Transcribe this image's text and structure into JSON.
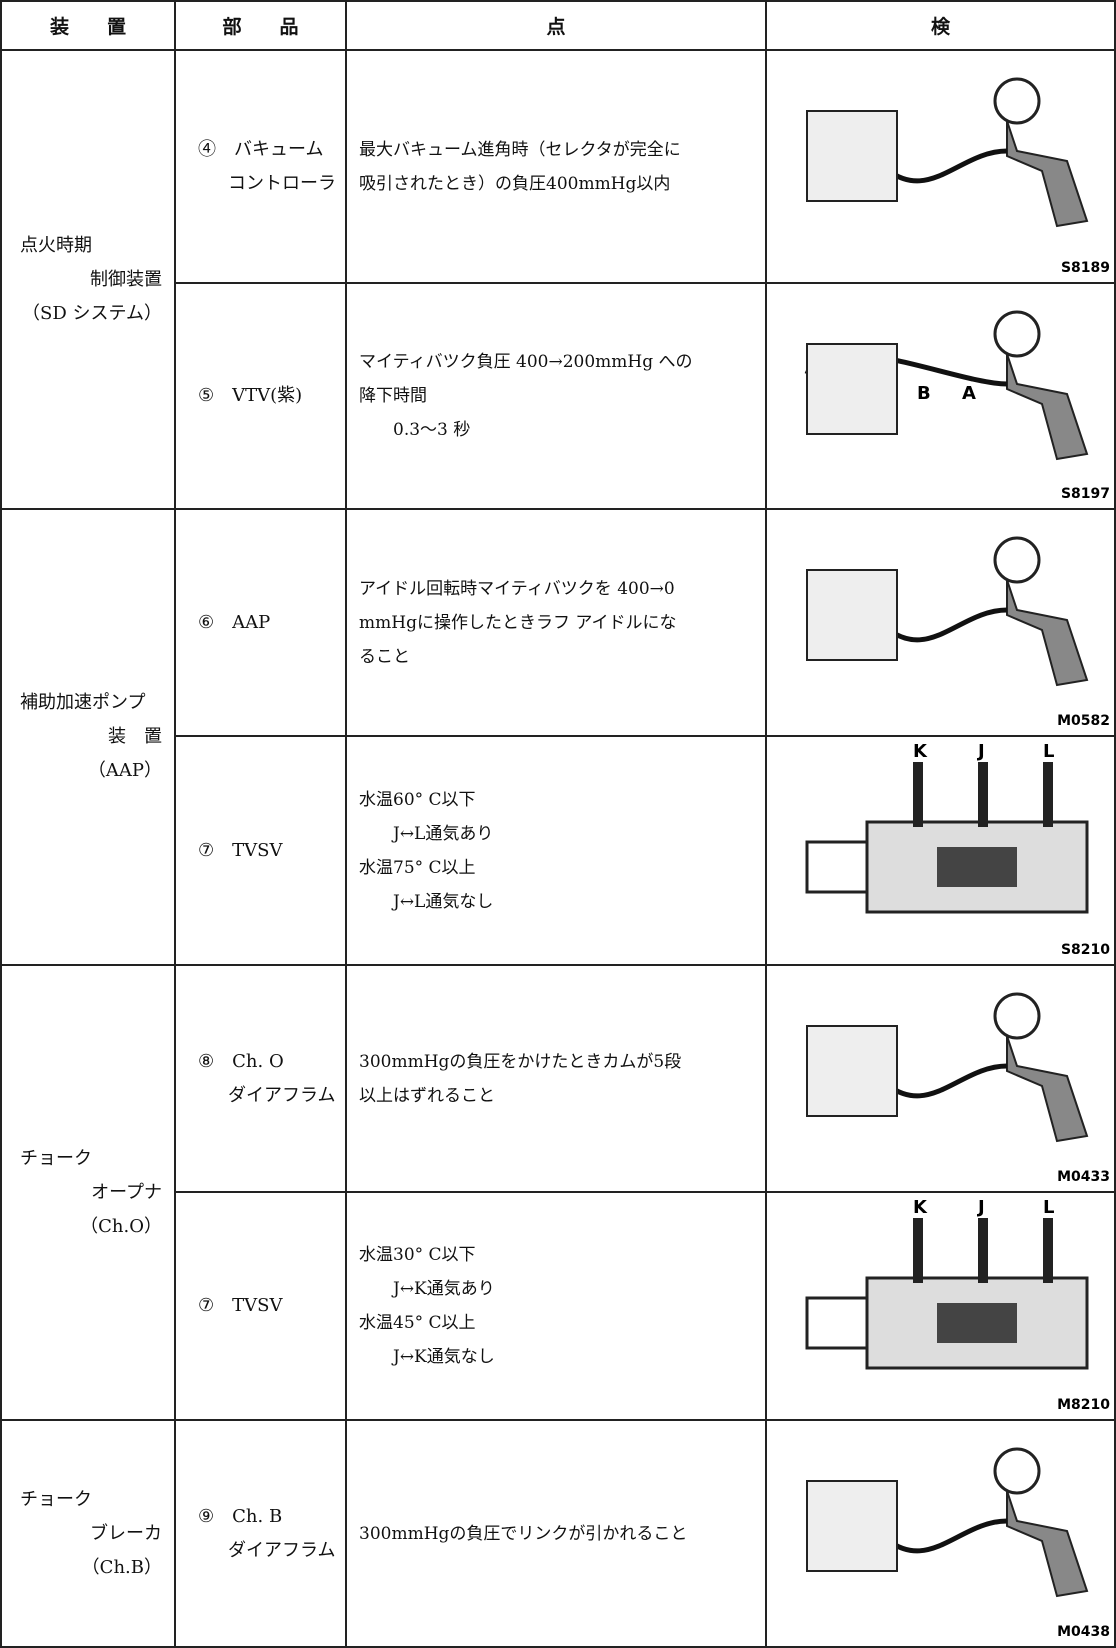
{
  "header": [
    "装　　置",
    "部　　品",
    "点",
    "検"
  ],
  "groups": [
    {
      "device": [
        "点火時期",
        "制御装置",
        "（SD システム）"
      ],
      "rows": [
        {
          "part": [
            "④　バキューム",
            "コントローラ"
          ],
          "check": [
            "最大バキューム進角時（セレクタが完全に",
            "吸引されたとき）の負圧400mmHg以内"
          ],
          "figure": {
            "code": "S8189",
            "labels": []
          }
        },
        {
          "part": [
            "⑤　VTV(紫)"
          ],
          "check": [
            "マイティバツク負圧 400→200mmHg への",
            "降下時間",
            "　　0.3～3 秒"
          ],
          "figure": {
            "code": "S8197",
            "labels": [
              "B",
              "A"
            ]
          }
        }
      ]
    },
    {
      "device": [
        "補助加速ポンプ",
        "装　置",
        "（AAP）"
      ],
      "rows": [
        {
          "part": [
            "⑥　AAP"
          ],
          "check": [
            "アイドル回転時マイティバツクを 400→0",
            "mmHgに操作したときラフ アイドルにな",
            "ること"
          ],
          "figure": {
            "code": "M0582",
            "labels": []
          }
        },
        {
          "part": [
            "⑦　TVSV"
          ],
          "check": [
            "水温60° C以下",
            "　　J↔L通気あり",
            "水温75° C以上",
            "　　J↔L通気なし"
          ],
          "figure": {
            "code": "S8210",
            "labels": [
              "K",
              "J",
              "L"
            ]
          }
        }
      ]
    },
    {
      "device": [
        "チョーク",
        "オープナ",
        "（Ch.O）"
      ],
      "rows": [
        {
          "part": [
            "⑧　Ch. O",
            "ダイアフラム"
          ],
          "check": [
            "300mmHgの負圧をかけたときカムが5段",
            "以上はずれること"
          ],
          "figure": {
            "code": "M0433",
            "labels": []
          }
        },
        {
          "part": [
            "⑦　TVSV"
          ],
          "check": [
            "水温30° C以下",
            "　　J↔K通気あり",
            "水温45° C以上",
            "　　J↔K通気なし"
          ],
          "figure": {
            "code": "M8210",
            "labels": [
              "K",
              "J",
              "L"
            ]
          }
        }
      ]
    },
    {
      "device": [
        "チョーク",
        "ブレーカ",
        "（Ch.B）"
      ],
      "rows": [
        {
          "part": [
            "⑨　Ch. B",
            "ダイアフラム"
          ],
          "check": [
            "300mmHgの負圧でリンクが引かれること"
          ],
          "figure": {
            "code": "M0438",
            "labels": []
          }
        }
      ]
    }
  ]
}
